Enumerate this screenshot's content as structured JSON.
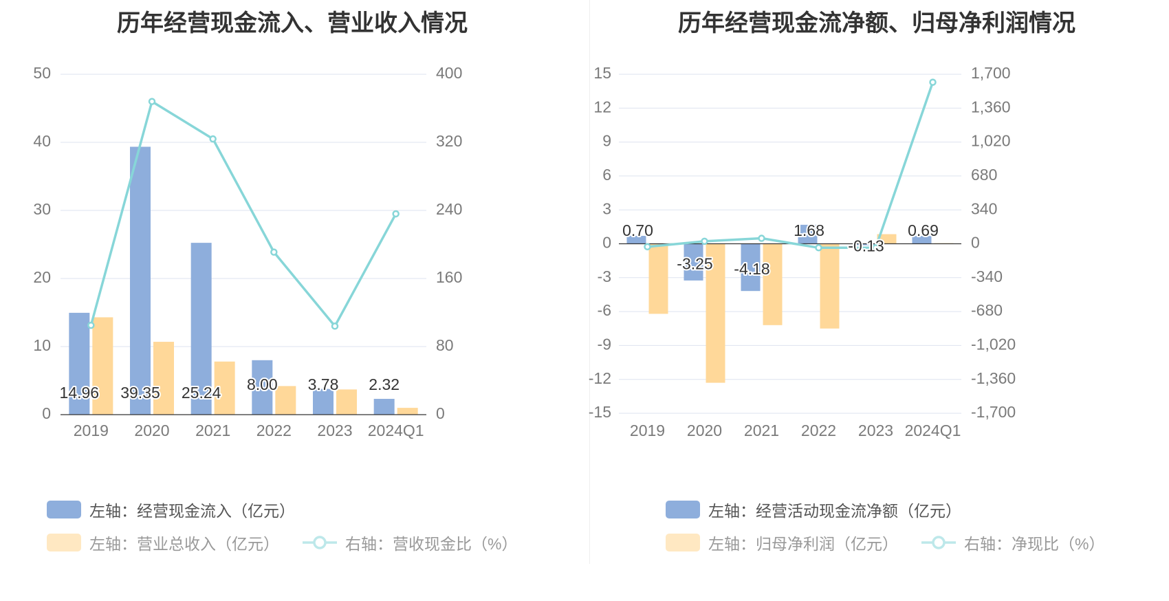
{
  "colors": {
    "bar_primary": "#8eaedc",
    "bar_secondary": "#ffd899",
    "bar_secondary_muted": "#ffe8c2",
    "line": "#87d6d8",
    "line_muted": "#bde8ea",
    "grid": "#dde3ef",
    "axis": "#333333"
  },
  "chart_data": [
    {
      "type": "bar",
      "title": "历年经营现金流入、营业收入情况",
      "categories": [
        "2019",
        "2020",
        "2021",
        "2022",
        "2023",
        "2024Q1"
      ],
      "series": [
        {
          "name": "左轴：经营现金流入（亿元）",
          "axis": "left",
          "kind": "bar",
          "values": [
            14.96,
            39.35,
            25.24,
            8.0,
            3.78,
            2.32
          ],
          "data_labels": [
            "14.96",
            "39.35",
            "25.24",
            "8.00",
            "3.78",
            "2.32"
          ]
        },
        {
          "name": "左轴：营业总收入（亿元）",
          "axis": "left",
          "kind": "bar",
          "values": [
            14.3,
            10.7,
            7.8,
            4.2,
            3.7,
            1.0
          ]
        },
        {
          "name": "右轴：营收现金比（%）",
          "axis": "right",
          "kind": "line",
          "values": [
            105,
            368,
            324,
            191,
            104,
            236
          ]
        }
      ],
      "left_axis": {
        "min": 0,
        "max": 50,
        "ticks": [
          "0",
          "10",
          "20",
          "30",
          "40",
          "50"
        ]
      },
      "right_axis": {
        "min": 0,
        "max": 400,
        "ticks": [
          "0",
          "80",
          "160",
          "240",
          "320",
          "400"
        ]
      },
      "grid": true,
      "legend_placement": "bottom",
      "legend": [
        {
          "label": "左轴：经营现金流入（亿元）",
          "kind": "bar",
          "color": "#8eaedc",
          "muted": false
        },
        {
          "label": "左轴：营业总收入（亿元）",
          "kind": "bar",
          "color": "#ffe8c2",
          "muted": true
        },
        {
          "label": "右轴：营收现金比（%）",
          "kind": "line",
          "color": "#bde8ea",
          "muted": true
        }
      ]
    },
    {
      "type": "bar",
      "title": "历年经营现金流净额、归母净利润情况",
      "categories": [
        "2019",
        "2020",
        "2021",
        "2022",
        "2023",
        "2024Q1"
      ],
      "series": [
        {
          "name": "左轴：经营活动现金流净额（亿元）",
          "axis": "left",
          "kind": "bar",
          "values": [
            0.7,
            -3.25,
            -4.18,
            1.68,
            -0.13,
            0.69
          ],
          "data_labels": [
            "0.70",
            "-3.25",
            "-4.18",
            "1.68",
            "-0.13",
            "0.69"
          ]
        },
        {
          "name": "左轴：归母净利润（亿元）",
          "axis": "left",
          "kind": "bar",
          "values": [
            -6.2,
            -12.3,
            -7.2,
            -7.5,
            0.85,
            0.05
          ]
        },
        {
          "name": "右轴：净现比（%）",
          "axis": "right",
          "kind": "line",
          "values": [
            -30,
            25,
            55,
            -40,
            -40,
            1620
          ]
        }
      ],
      "left_axis": {
        "min": -15,
        "max": 15,
        "ticks": [
          "-15",
          "-12",
          "-9",
          "-6",
          "-3",
          "0",
          "3",
          "6",
          "9",
          "12",
          "15"
        ]
      },
      "right_axis": {
        "min": -1700,
        "max": 1700,
        "ticks": [
          "-1,700",
          "-1,360",
          "-1,020",
          "-680",
          "-340",
          "0",
          "340",
          "680",
          "1,020",
          "1,360",
          "1,700"
        ]
      },
      "grid": true,
      "legend_placement": "bottom",
      "legend": [
        {
          "label": "左轴：经营活动现金流净额（亿元）",
          "kind": "bar",
          "color": "#8eaedc",
          "muted": false
        },
        {
          "label": "左轴：归母净利润（亿元）",
          "kind": "bar",
          "color": "#ffe8c2",
          "muted": true
        },
        {
          "label": "右轴：净现比（%）",
          "kind": "line",
          "color": "#bde8ea",
          "muted": true
        }
      ]
    }
  ]
}
